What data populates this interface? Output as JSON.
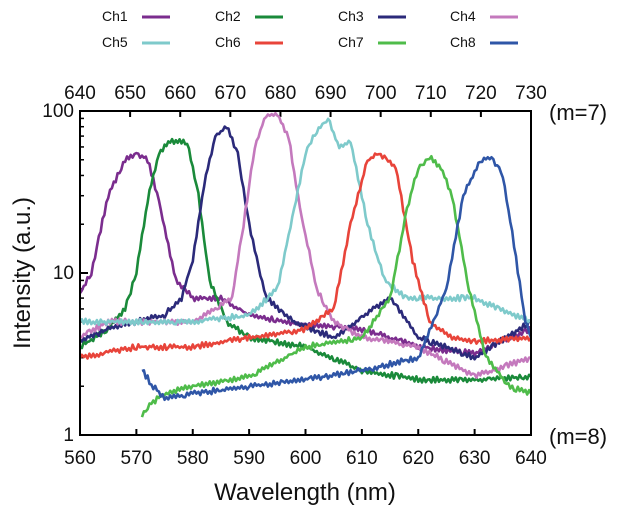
{
  "chart_data": {
    "type": "line",
    "xlabel": "Wavelength (nm)",
    "ylabel": "Intensity (a.u.)",
    "yscale": "log",
    "xlim": [
      560,
      640
    ],
    "ylim": [
      1,
      100
    ],
    "x_ticks": [
      560,
      570,
      580,
      590,
      600,
      610,
      620,
      630,
      640
    ],
    "y_ticks": [
      1,
      10,
      100
    ],
    "top_axis": {
      "ticks": [
        640,
        650,
        660,
        670,
        680,
        690,
        700,
        710,
        720,
        730
      ],
      "order_label": "(m=7)"
    },
    "bottom_order_label": "(m=8)",
    "grid": false,
    "legend": "top, 4 columns",
    "series": [
      {
        "name": "Ch1",
        "color": "#7b2d8e",
        "x": [
          560,
          562,
          565,
          568,
          570,
          572,
          574,
          577,
          580,
          585,
          590,
          600,
          610,
          620,
          630,
          640
        ],
        "y": [
          7.5,
          10,
          30,
          50,
          55,
          50,
          28,
          9,
          7,
          7,
          5.5,
          4.8,
          4.5,
          3.5,
          3.2,
          4.5
        ]
      },
      {
        "name": "Ch2",
        "color": "#1a8a3a",
        "x": [
          560,
          565,
          568,
          570,
          572,
          574,
          576,
          579,
          581,
          583,
          586,
          590,
          600,
          610,
          620,
          630,
          640
        ],
        "y": [
          3.5,
          4.5,
          6,
          10,
          28,
          55,
          65,
          65,
          30,
          9,
          5,
          4,
          3.5,
          2.5,
          2.2,
          2.2,
          2.3
        ]
      },
      {
        "name": "Ch3",
        "color": "#2b2a7a",
        "x": [
          560,
          565,
          570,
          575,
          578,
          580,
          582,
          584,
          586,
          588,
          590,
          593,
          598,
          605,
          612,
          615,
          620,
          630,
          640
        ],
        "y": [
          3.8,
          4.5,
          5,
          5.5,
          7,
          12,
          35,
          70,
          80,
          55,
          20,
          7,
          5,
          4,
          6,
          7,
          4,
          3,
          5
        ]
      },
      {
        "name": "Ch4",
        "color": "#c479bd",
        "x": [
          560,
          565,
          570,
          580,
          587,
          589,
          591,
          593,
          595,
          597,
          599,
          602,
          605,
          610,
          620,
          630,
          640
        ],
        "y": [
          4,
          5,
          5,
          5,
          7,
          20,
          60,
          95,
          95,
          70,
          25,
          8,
          5,
          4,
          3.5,
          2.3,
          3
        ]
      },
      {
        "name": "Ch5",
        "color": "#7ecacb",
        "x": [
          560,
          570,
          580,
          590,
          595,
          598,
          600,
          602,
          604,
          606,
          608,
          611,
          614,
          618,
          625,
          630,
          640
        ],
        "y": [
          5,
          5,
          5,
          5.5,
          8,
          25,
          55,
          75,
          90,
          60,
          65,
          20,
          9,
          7,
          7,
          7,
          5
        ]
      },
      {
        "name": "Ch6",
        "color": "#e8443a",
        "x": [
          560,
          570,
          580,
          590,
          600,
          605,
          608,
          611,
          613,
          616,
          619,
          622,
          626,
          630,
          640
        ],
        "y": [
          3,
          3.5,
          3.5,
          4,
          4.5,
          6,
          20,
          50,
          55,
          45,
          12,
          5,
          4,
          3.8,
          4
        ]
      },
      {
        "name": "Ch7",
        "color": "#4fbc4a",
        "x": [
          571,
          572,
          575,
          580,
          590,
          600,
          610,
          615,
          618,
          620,
          622,
          624,
          626,
          629,
          632,
          636,
          640
        ],
        "y": [
          1.3,
          1.5,
          1.8,
          2,
          2.3,
          3.5,
          4,
          7,
          25,
          45,
          52,
          45,
          30,
          8,
          3,
          2,
          1.8
        ]
      },
      {
        "name": "Ch8",
        "color": "#2f56a7",
        "x": [
          571,
          573,
          575,
          580,
          590,
          600,
          610,
          620,
          625,
          628,
          631,
          633,
          635,
          637,
          639,
          640
        ],
        "y": [
          2.5,
          2,
          1.7,
          1.8,
          2,
          2.2,
          2.5,
          3,
          8,
          30,
          50,
          52,
          40,
          15,
          5,
          4
        ]
      }
    ]
  }
}
